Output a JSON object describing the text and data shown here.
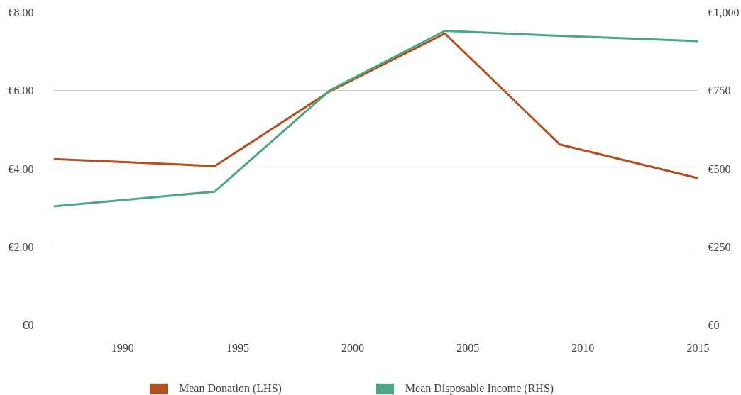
{
  "chart_data": {
    "type": "line",
    "x": [
      1987,
      1994,
      1999,
      2004,
      2009,
      2015
    ],
    "xlim": [
      1987,
      2015
    ],
    "xticks": [
      1990,
      1995,
      2000,
      2005,
      2010,
      2015
    ],
    "ylim": [
      0,
      8
    ],
    "yticks": [
      {
        "value": 0,
        "label": "€0"
      },
      {
        "value": 2,
        "label": "€2.00"
      },
      {
        "value": 4,
        "label": "€4.00"
      },
      {
        "value": 6,
        "label": "€6.00"
      },
      {
        "value": 8,
        "label": "€8.00"
      }
    ],
    "y2lim": [
      0,
      1000
    ],
    "y2ticks": [
      {
        "value": 0,
        "label": "€0"
      },
      {
        "value": 250,
        "label": "€250"
      },
      {
        "value": 500,
        "label": "€500"
      },
      {
        "value": 750,
        "label": "€750"
      },
      {
        "value": 1000,
        "label": "€1,000"
      }
    ],
    "series": [
      {
        "name": "Mean Donation (LHS)",
        "color": "#b34e1f",
        "values": [
          4.25,
          4.07,
          5.98,
          7.46,
          4.62,
          3.76
        ]
      },
      {
        "name": "Mean Disposable Income (RHS)",
        "color": "#4ca67f",
        "axis": "y2",
        "values": [
          380,
          427,
          751,
          941,
          925,
          908
        ]
      }
    ],
    "grid": "y",
    "legend": "bottom",
    "line_style": "solid"
  }
}
